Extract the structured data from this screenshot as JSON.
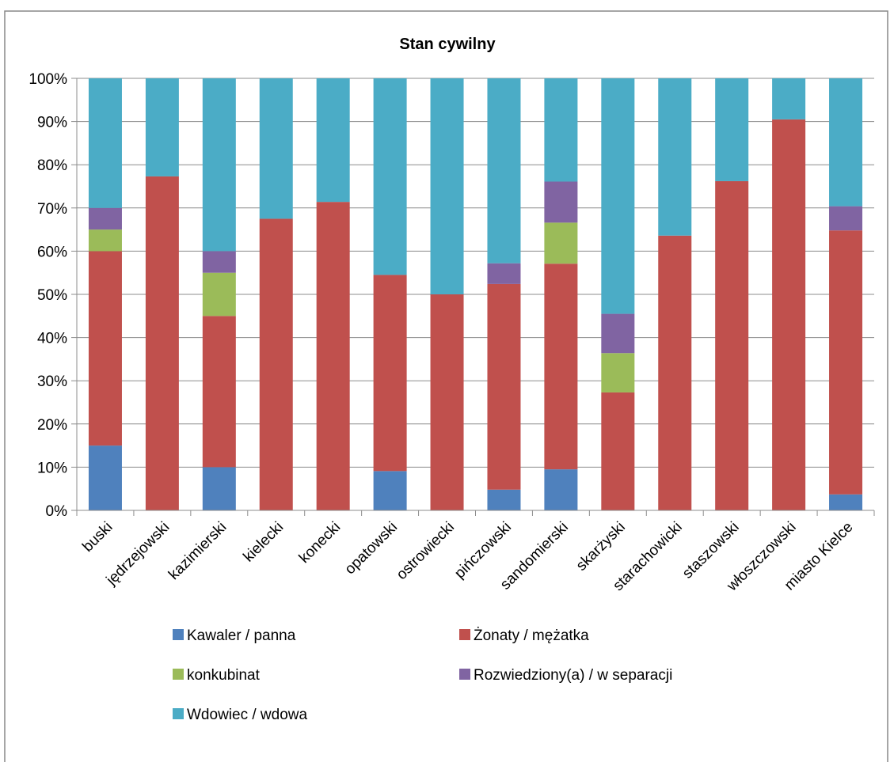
{
  "chart_data": {
    "type": "bar",
    "stacked": true,
    "percent": true,
    "title": "Stan cywilny",
    "categories": [
      "buski",
      "jędrzejowski",
      "kazimierski",
      "kielecki",
      "konecki",
      "opatowski",
      "ostrowiecki",
      "pińczowski",
      "sandomierski",
      "skarżyski",
      "starachowicki",
      "staszowski",
      "włoszczowski",
      "miasto Kielce"
    ],
    "y_ticks": [
      "0%",
      "10%",
      "20%",
      "30%",
      "40%",
      "50%",
      "60%",
      "70%",
      "80%",
      "90%",
      "100%"
    ],
    "ylim": [
      0,
      100
    ],
    "grid": true,
    "legend_position": "bottom",
    "series": [
      {
        "name": "Kawaler / panna",
        "color": "#4F81BD",
        "values": [
          15,
          0,
          10,
          0,
          0,
          9.1,
          0,
          4.8,
          9.5,
          0,
          0,
          0,
          0,
          3.7
        ]
      },
      {
        "name": "Żonaty / mężatka",
        "color": "#C0504D",
        "values": [
          45,
          77.3,
          35,
          67.5,
          71.4,
          45.4,
          50,
          47.6,
          47.6,
          27.3,
          63.6,
          76.2,
          90.5,
          61.1
        ]
      },
      {
        "name": "konkubinat",
        "color": "#9BBB59",
        "values": [
          5,
          0,
          10,
          0,
          0,
          0,
          0,
          0,
          9.5,
          9.1,
          0,
          0,
          0,
          0
        ]
      },
      {
        "name": "Rozwiedziony(a) / w separacji",
        "color": "#8064A2",
        "values": [
          5,
          0,
          5,
          0,
          0,
          0,
          0,
          4.8,
          9.5,
          9.1,
          0,
          0,
          0,
          5.6
        ]
      },
      {
        "name": "Wdowiec / wdowa",
        "color": "#4BACC6",
        "values": [
          30,
          22.7,
          40,
          32.5,
          28.6,
          45.5,
          50,
          42.8,
          23.9,
          54.5,
          36.4,
          23.8,
          9.5,
          29.6
        ]
      }
    ]
  }
}
